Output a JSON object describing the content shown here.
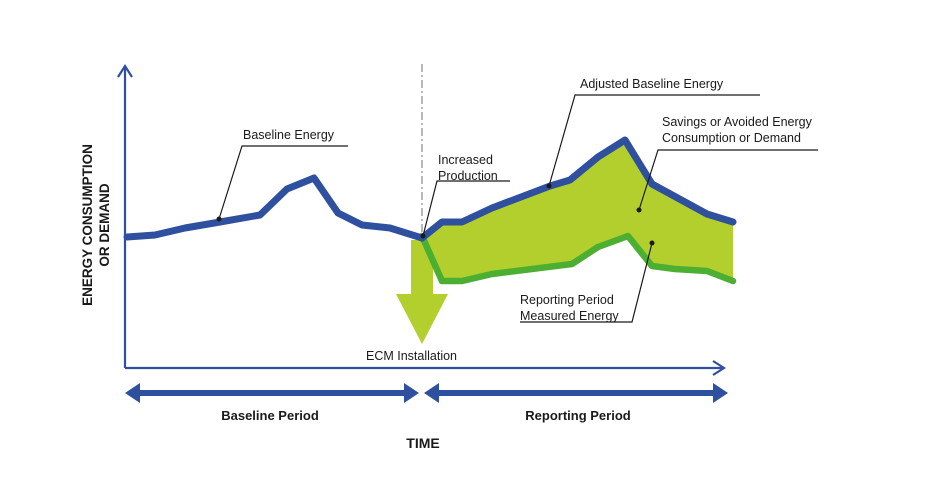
{
  "diagram": {
    "y_axis_label_line1": "ENERGY CONSUMPTION",
    "y_axis_label_line2": "OR DEMAND",
    "x_axis_label": "TIME",
    "annotations": {
      "baseline_energy": "Baseline Energy",
      "increased_production_line1": "Increased",
      "increased_production_line2": "Production",
      "adjusted_baseline": "Adjusted Baseline Energy",
      "savings_line1": "Savings or Avoided Energy",
      "savings_line2": "Consumption or Demand",
      "reporting_measured_line1": "Reporting Period",
      "reporting_measured_line2": "Measured Energy",
      "ecm_installation": "ECM Installation"
    },
    "periods": {
      "baseline": "Baseline Period",
      "reporting": "Reporting Period"
    },
    "colors": {
      "axis": "#2e509e",
      "baseline_line": "#2e509e",
      "measured_line": "#4caf32",
      "savings_fill": "#b3cf2d",
      "ecm_arrow": "#b3cf2d",
      "period_arrow": "#2e509e",
      "leader": "#1a1a1a"
    }
  }
}
